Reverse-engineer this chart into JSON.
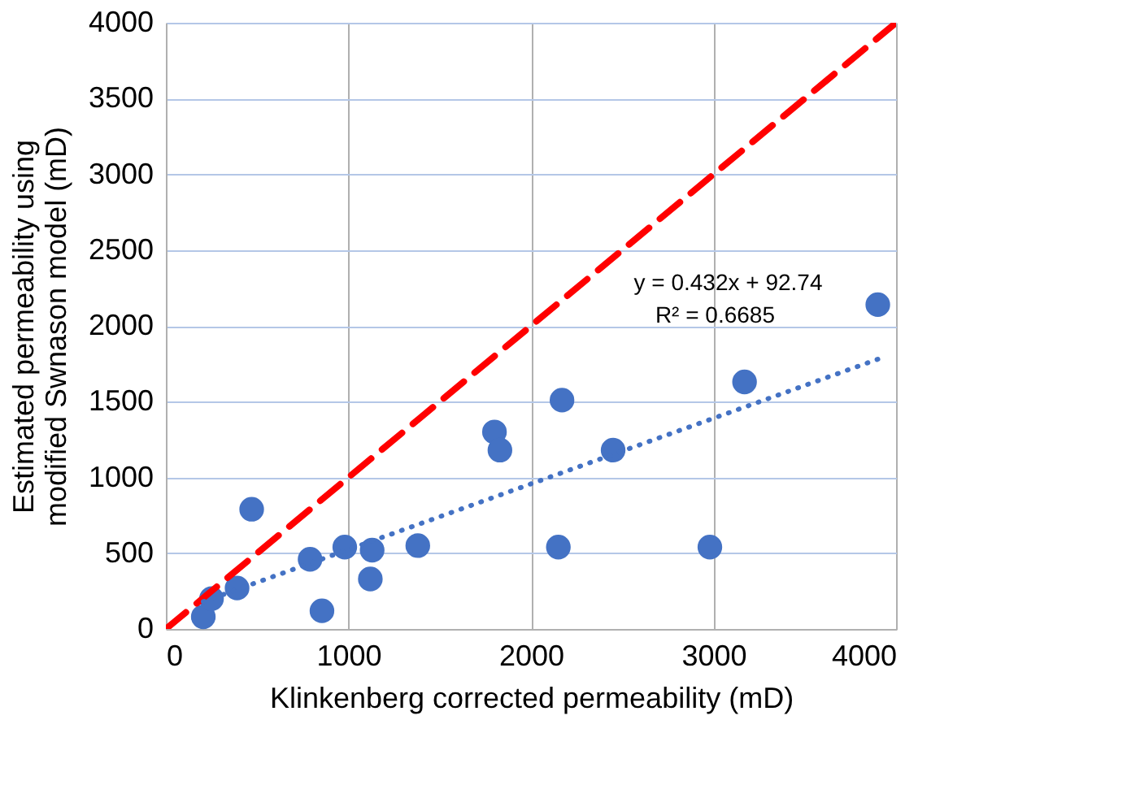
{
  "chart_data": {
    "type": "scatter",
    "xlabel": "Klinkenberg corrected permeability (mD)",
    "ylabel": "Estimated permeability using\nmodified Swnason model (mD)",
    "series": [
      {
        "color": "#4472c4",
        "marker": "circle",
        "x": [
          205,
          250,
          390,
          470,
          790,
          855,
          980,
          1130,
          1120,
          1380,
          1800,
          1830,
          2170,
          2150,
          2450,
          3170,
          2980,
          3900
        ],
        "values": [
          80,
          200,
          270,
          790,
          460,
          120,
          540,
          520,
          330,
          550,
          1300,
          1180,
          1510,
          540,
          1180,
          1630,
          540,
          2140
        ]
      },
      {
        "type": "line",
        "color": "#ff0000",
        "line_style": "dashed",
        "x": [
          0,
          4000
        ],
        "values": [
          0,
          4000
        ]
      },
      {
        "type": "line",
        "color": "#4472c4",
        "line_style": "dotted",
        "x": [
          205,
          3900
        ],
        "values": [
          180,
          1780
        ]
      }
    ],
    "annotations": [
      "y = 0.432x + 92.74",
      "R² = 0.6685"
    ],
    "xlim": [
      0,
      4000
    ],
    "xticks": [
      0,
      1000,
      2000,
      3000,
      4000
    ],
    "ylim": [
      0,
      4000
    ],
    "yticks": [
      0,
      500,
      1000,
      1500,
      2000,
      2500,
      3000,
      3500,
      4000
    ],
    "grid": true
  }
}
